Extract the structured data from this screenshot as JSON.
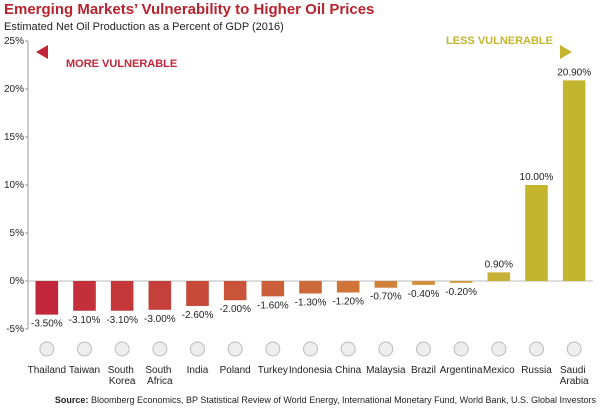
{
  "chart_data": {
    "type": "bar",
    "title": "Emerging Markets’ Vulnerability to Higher Oil Prices",
    "subtitle": "Estimated Net Oil Production as a Percent of GDP (2016)",
    "annotations": {
      "left": "MORE VULNERABLE",
      "right": "LESS VULNERABLE"
    },
    "categories": [
      "Thailand",
      "Taiwan",
      "South Korea",
      "South Africa",
      "India",
      "Poland",
      "Turkey",
      "Indonesia",
      "China",
      "Malaysia",
      "Brazil",
      "Argentina",
      "Mexico",
      "Russia",
      "Saudi Arabia"
    ],
    "values": [
      -3.5,
      -3.1,
      -3.1,
      -3.0,
      -2.6,
      -2.0,
      -1.6,
      -1.3,
      -1.2,
      -0.7,
      -0.4,
      -0.2,
      0.9,
      10.0,
      20.9
    ],
    "value_labels": [
      "-3.50%",
      "-3.10%",
      "-3.10%",
      "-3.00%",
      "-2.60%",
      "-2.00%",
      "-1.60%",
      "-1.30%",
      "-1.20%",
      "-0.70%",
      "-0.40%",
      "-0.20%",
      "0.90%",
      "10.00%",
      "20.90%"
    ],
    "colors": [
      "#c1263a",
      "#c3303a",
      "#c4383a",
      "#c5403a",
      "#c74a3a",
      "#c9543a",
      "#cb5f3a",
      "#cd6a3a",
      "#cf753a",
      "#d0823a",
      "#d08f3a",
      "#cfa03a",
      "#c9b135",
      "#c4b52f",
      "#c4b52f"
    ],
    "ylim": [
      -5,
      25
    ],
    "yticks": [
      {
        "value": -5,
        "label": "-5%"
      },
      {
        "value": 0,
        "label": "0%"
      },
      {
        "value": 5,
        "label": "5%"
      },
      {
        "value": 10,
        "label": "10%"
      },
      {
        "value": 15,
        "label": "15%"
      },
      {
        "value": 20,
        "label": "20%"
      },
      {
        "value": 25,
        "label": "25%"
      }
    ],
    "grid": false,
    "source_label": "Source:",
    "source": "Bloomberg Economics, BP Statistical Review of World Energy, International Monetary Fund, World Bank, U.S. Global Investors"
  }
}
